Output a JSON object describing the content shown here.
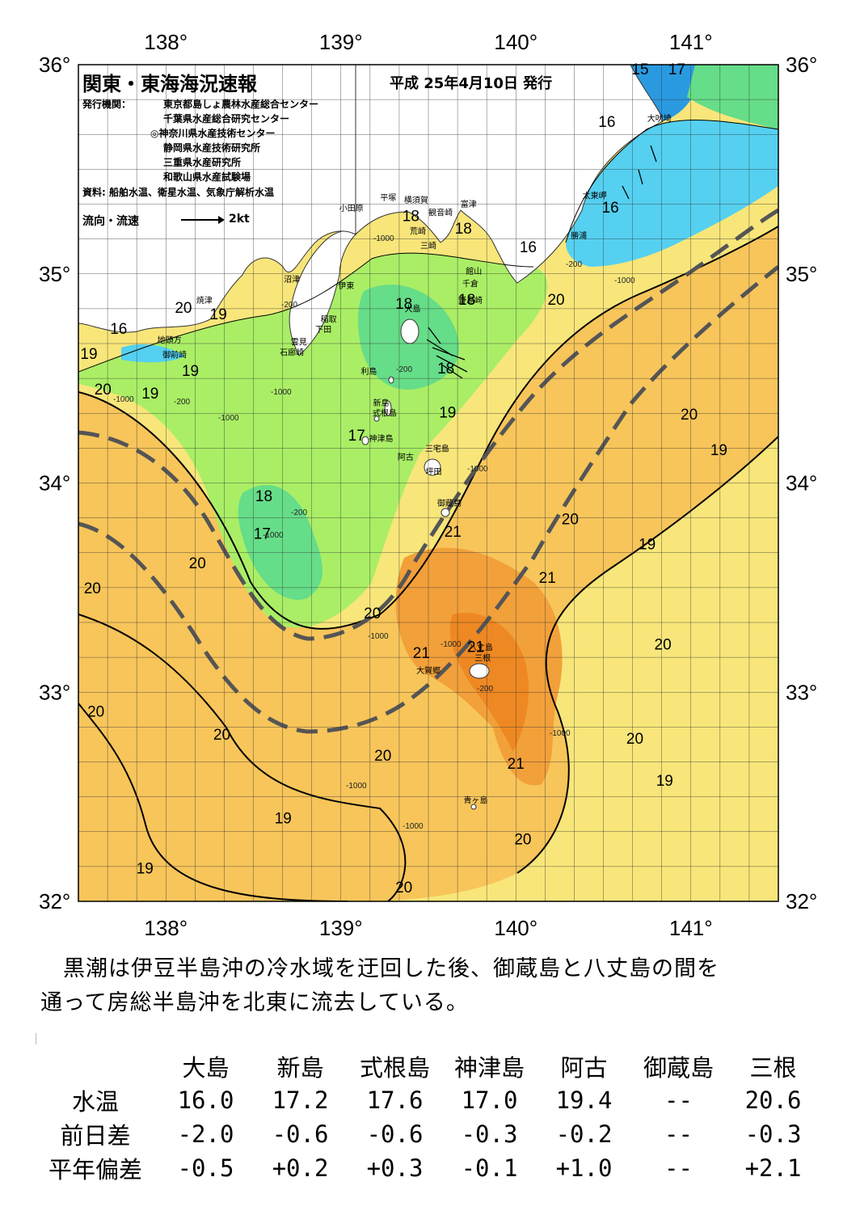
{
  "title": "関東・東海海況速報",
  "issue_date": "平成 25年4月10日 発行",
  "agencies_label": "発行機関：",
  "agencies": [
    "東京都島しょ農林水産総合センター",
    "千葉県水産総合研究センター",
    "◎神奈川県水産技術センター",
    "静岡県水産技術研究所",
    "三重県水産研究所",
    "和歌山県水産試験場"
  ],
  "sources": "資料: 船舶水温、衛星水温、気象庁解析水温",
  "flow_legend": {
    "label": "流向・流速",
    "scale": "2kt"
  },
  "longitude_labels": [
    "138°",
    "139°",
    "140°",
    "141°"
  ],
  "latitude_labels": [
    "36°",
    "35°",
    "34°",
    "33°",
    "32°"
  ],
  "isotherm_labels": [
    {
      "text": "15",
      "lon": 140.71,
      "lat": 35.98
    },
    {
      "text": "17",
      "lon": 140.92,
      "lat": 35.98
    },
    {
      "text": "16",
      "lon": 140.52,
      "lat": 35.73
    },
    {
      "text": "16",
      "lon": 140.54,
      "lat": 35.32
    },
    {
      "text": "16",
      "lon": 140.07,
      "lat": 35.13
    },
    {
      "text": "18",
      "lon": 139.4,
      "lat": 35.28
    },
    {
      "text": "18",
      "lon": 139.7,
      "lat": 35.22
    },
    {
      "text": "18",
      "lon": 139.36,
      "lat": 34.86
    },
    {
      "text": "18",
      "lon": 139.72,
      "lat": 34.88
    },
    {
      "text": "18",
      "lon": 139.6,
      "lat": 34.55
    },
    {
      "text": "20",
      "lon": 140.23,
      "lat": 34.88
    },
    {
      "text": "20",
      "lon": 138.1,
      "lat": 34.84
    },
    {
      "text": "19",
      "lon": 138.3,
      "lat": 34.81
    },
    {
      "text": "16",
      "lon": 137.73,
      "lat": 34.74
    },
    {
      "text": "19",
      "lon": 137.56,
      "lat": 34.62
    },
    {
      "text": "19",
      "lon": 138.14,
      "lat": 34.54
    },
    {
      "text": "20",
      "lon": 137.64,
      "lat": 34.45
    },
    {
      "text": "19",
      "lon": 137.91,
      "lat": 34.43
    },
    {
      "text": "19",
      "lon": 139.61,
      "lat": 34.34
    },
    {
      "text": "17",
      "lon": 139.09,
      "lat": 34.23
    },
    {
      "text": "20",
      "lon": 140.99,
      "lat": 34.33
    },
    {
      "text": "19",
      "lon": 141.16,
      "lat": 34.16
    },
    {
      "text": "18",
      "lon": 138.56,
      "lat": 33.94
    },
    {
      "text": "17",
      "lon": 138.55,
      "lat": 33.76
    },
    {
      "text": "20",
      "lon": 140.31,
      "lat": 33.83
    },
    {
      "text": "21",
      "lon": 139.64,
      "lat": 33.77
    },
    {
      "text": "19",
      "lon": 140.75,
      "lat": 33.71
    },
    {
      "text": "20",
      "lon": 138.18,
      "lat": 33.62
    },
    {
      "text": "20",
      "lon": 137.58,
      "lat": 33.5
    },
    {
      "text": "21",
      "lon": 140.18,
      "lat": 33.55
    },
    {
      "text": "20",
      "lon": 139.18,
      "lat": 33.38
    },
    {
      "text": "21",
      "lon": 139.77,
      "lat": 33.22
    },
    {
      "text": "21",
      "lon": 139.46,
      "lat": 33.19
    },
    {
      "text": "20",
      "lon": 140.84,
      "lat": 33.23
    },
    {
      "text": "20",
      "lon": 137.6,
      "lat": 32.91
    },
    {
      "text": "20",
      "lon": 138.32,
      "lat": 32.8
    },
    {
      "text": "20",
      "lon": 140.68,
      "lat": 32.78
    },
    {
      "text": "20",
      "lon": 139.24,
      "lat": 32.7
    },
    {
      "text": "21",
      "lon": 140.0,
      "lat": 32.66
    },
    {
      "text": "19",
      "lon": 140.85,
      "lat": 32.58
    },
    {
      "text": "19",
      "lon": 138.67,
      "lat": 32.4
    },
    {
      "text": "20",
      "lon": 140.04,
      "lat": 32.3
    },
    {
      "text": "19",
      "lon": 137.88,
      "lat": 32.16
    },
    {
      "text": "20",
      "lon": 139.36,
      "lat": 32.07
    }
  ],
  "places": [
    {
      "name": "大吠埼",
      "lon": 140.82,
      "lat": 35.73
    },
    {
      "name": "太東岬",
      "lon": 140.45,
      "lat": 35.36
    },
    {
      "name": "勝浦",
      "lon": 140.36,
      "lat": 35.17
    },
    {
      "name": "小田原",
      "lon": 139.06,
      "lat": 35.3
    },
    {
      "name": "平塚",
      "lon": 139.27,
      "lat": 35.35
    },
    {
      "name": "横須賀",
      "lon": 139.43,
      "lat": 35.34
    },
    {
      "name": "観音崎",
      "lon": 139.57,
      "lat": 35.28
    },
    {
      "name": "富津",
      "lon": 139.73,
      "lat": 35.32
    },
    {
      "name": "荒崎",
      "lon": 139.44,
      "lat": 35.19
    },
    {
      "name": "三崎",
      "lon": 139.5,
      "lat": 35.12
    },
    {
      "name": "館山",
      "lon": 139.76,
      "lat": 35.0
    },
    {
      "name": "千倉",
      "lon": 139.74,
      "lat": 34.94
    },
    {
      "name": "野島崎",
      "lon": 139.74,
      "lat": 34.86
    },
    {
      "name": "沼津",
      "lon": 138.72,
      "lat": 34.96
    },
    {
      "name": "伊東",
      "lon": 139.03,
      "lat": 34.93
    },
    {
      "name": "大島",
      "lon": 139.41,
      "lat": 34.82
    },
    {
      "name": "稲取",
      "lon": 138.93,
      "lat": 34.77
    },
    {
      "name": "下田",
      "lon": 138.9,
      "lat": 34.72
    },
    {
      "name": "雲見",
      "lon": 138.76,
      "lat": 34.66
    },
    {
      "name": "石廊崎",
      "lon": 138.72,
      "lat": 34.61
    },
    {
      "name": "焼津",
      "lon": 138.22,
      "lat": 34.86
    },
    {
      "name": "地頭方",
      "lon": 138.02,
      "lat": 34.67
    },
    {
      "name": "御前崎",
      "lon": 138.05,
      "lat": 34.6
    },
    {
      "name": "利島",
      "lon": 139.16,
      "lat": 34.52
    },
    {
      "name": "新島",
      "lon": 139.23,
      "lat": 34.37
    },
    {
      "name": "式根島",
      "lon": 139.25,
      "lat": 34.32
    },
    {
      "name": "神津島",
      "lon": 139.23,
      "lat": 34.2
    },
    {
      "name": "阿古",
      "lon": 139.37,
      "lat": 34.11
    },
    {
      "name": "三宅島",
      "lon": 139.55,
      "lat": 34.15
    },
    {
      "name": "坪田",
      "lon": 139.53,
      "lat": 34.04
    },
    {
      "name": "御蔵島",
      "lon": 139.62,
      "lat": 33.89
    },
    {
      "name": "八丈島",
      "lon": 139.8,
      "lat": 33.2
    },
    {
      "name": "三根",
      "lon": 139.81,
      "lat": 33.15
    },
    {
      "name": "大賀郷",
      "lon": 139.5,
      "lat": 33.09
    },
    {
      "name": "青ヶ島",
      "lon": 139.77,
      "lat": 32.47
    }
  ],
  "colors": {
    "cold_15": "#2a9ae0",
    "temp_16": "#55d0f0",
    "temp_17": "#66dd88",
    "temp_18": "#aaee66",
    "temp_19": "#f8e67a",
    "temp_20": "#f7c55a",
    "temp_21": "#f2a03a",
    "temp_22": "#ee8822",
    "land": "#ffffff",
    "kuroshio_axis": "#555555"
  },
  "summary": [
    "　黒潮は伊豆半島沖の冷水域を迂回した後、御蔵島と八丈島の間を",
    "通って房総半島沖を北東に流去している。"
  ],
  "table": {
    "headers": [
      "大島",
      "新島",
      "式根島",
      "神津島",
      "阿古",
      "御蔵島",
      "三根"
    ],
    "rows": [
      {
        "label": "水温",
        "values": [
          "16.0",
          "17.2",
          "17.6",
          "17.0",
          "19.4",
          "--",
          "20.6"
        ]
      },
      {
        "label": "前日差",
        "values": [
          "-2.0",
          "-0.6",
          "-0.6",
          "-0.3",
          "-0.2",
          "--",
          "-0.3"
        ]
      },
      {
        "label": "平年偏差",
        "values": [
          "-0.5",
          "+0.2",
          "+0.3",
          "-0.1",
          "+1.0",
          "--",
          "+2.1"
        ]
      }
    ]
  }
}
